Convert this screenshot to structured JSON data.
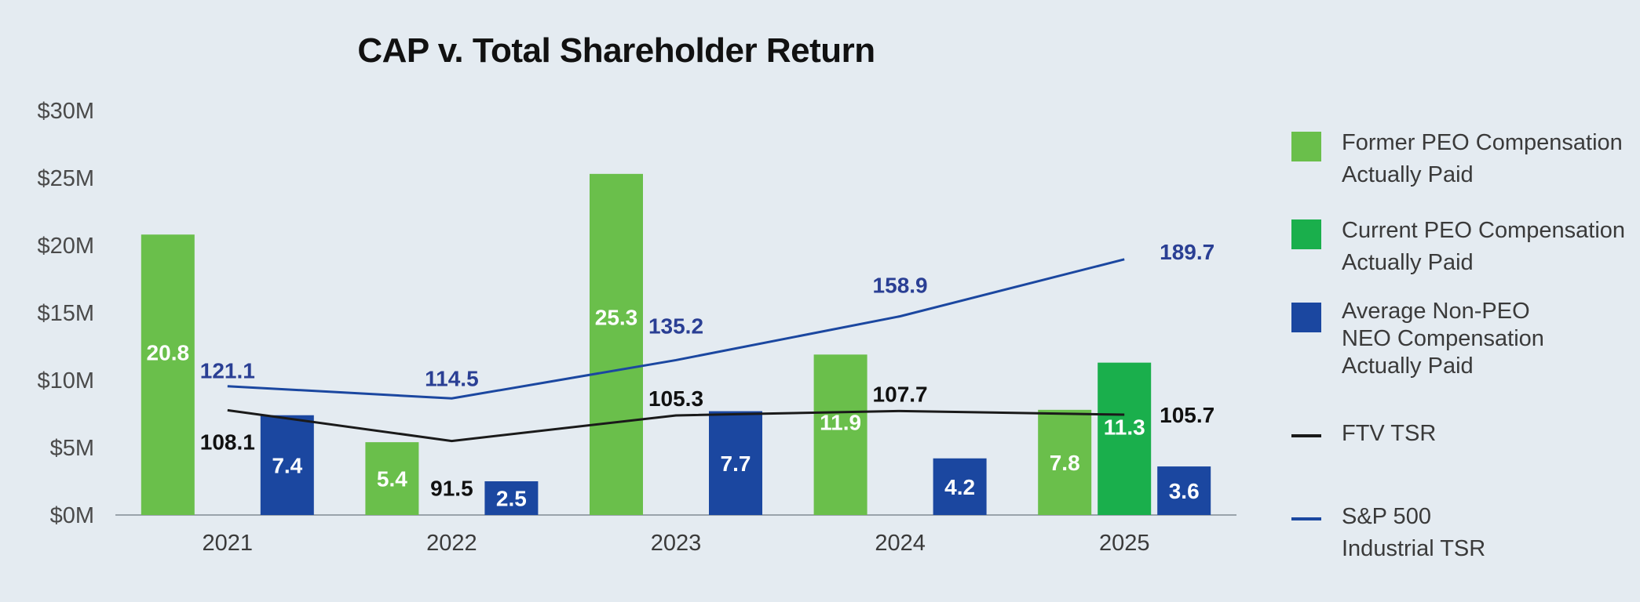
{
  "chart_data": {
    "type": "bar",
    "title": "CAP v. Total Shareholder Return",
    "categories": [
      "2021",
      "2022",
      "2023",
      "2024",
      "2025"
    ],
    "y_axis": {
      "ylim": [
        0,
        30
      ],
      "ticks": [
        0,
        5,
        10,
        15,
        20,
        25,
        30
      ],
      "tick_labels": [
        "$0M",
        "$5M",
        "$10M",
        "$15M",
        "$20M",
        "$25M",
        "$30M"
      ]
    },
    "grid": false,
    "legend_position": "right",
    "colors": {
      "former_peo": "#6abf4b",
      "current_peo": "#1aaf4c",
      "non_peo": "#1b47a0",
      "ftv_tsr": "#1a1a1a",
      "sp500_tsr": "#1b47a0",
      "label_dark": "#111111",
      "label_blue": "#2a3f94"
    },
    "series": [
      {
        "key": "former_peo",
        "kind": "bar",
        "values": [
          20.8,
          5.4,
          25.3,
          11.9,
          7.8
        ],
        "labels": [
          "20.8",
          "5.4",
          "25.3",
          "11.9",
          "7.8"
        ]
      },
      {
        "key": "current_peo",
        "kind": "bar",
        "values": [
          null,
          null,
          null,
          null,
          11.3
        ],
        "labels": [
          "",
          "",
          "",
          "",
          "11.3"
        ]
      },
      {
        "key": "non_peo",
        "kind": "bar",
        "values": [
          7.4,
          2.5,
          7.7,
          4.2,
          3.6
        ],
        "labels": [
          "7.4",
          "2.5",
          "7.7",
          "4.2",
          "3.6"
        ]
      },
      {
        "key": "ftv_tsr",
        "kind": "line",
        "values": [
          108.1,
          91.5,
          105.3,
          107.7,
          105.7
        ],
        "labels": [
          "108.1",
          "91.5",
          "105.3",
          "107.7",
          "105.7"
        ]
      },
      {
        "key": "sp500_tsr",
        "kind": "line",
        "values": [
          121.1,
          114.5,
          135.2,
          158.9,
          189.7
        ],
        "labels": [
          "121.1",
          "114.5",
          "135.2",
          "158.9",
          "189.7"
        ]
      }
    ]
  },
  "legend": {
    "former_peo": [
      "Former PEO Compensation",
      "Actually Paid"
    ],
    "current_peo": [
      "Current PEO Compensation",
      "Actually Paid"
    ],
    "non_peo": [
      "Average Non-PEO",
      "NEO Compensation",
      "Actually Paid"
    ],
    "ftv_tsr": [
      "FTV TSR"
    ],
    "sp500_tsr": [
      "S&P 500",
      "Industrial TSR"
    ]
  }
}
